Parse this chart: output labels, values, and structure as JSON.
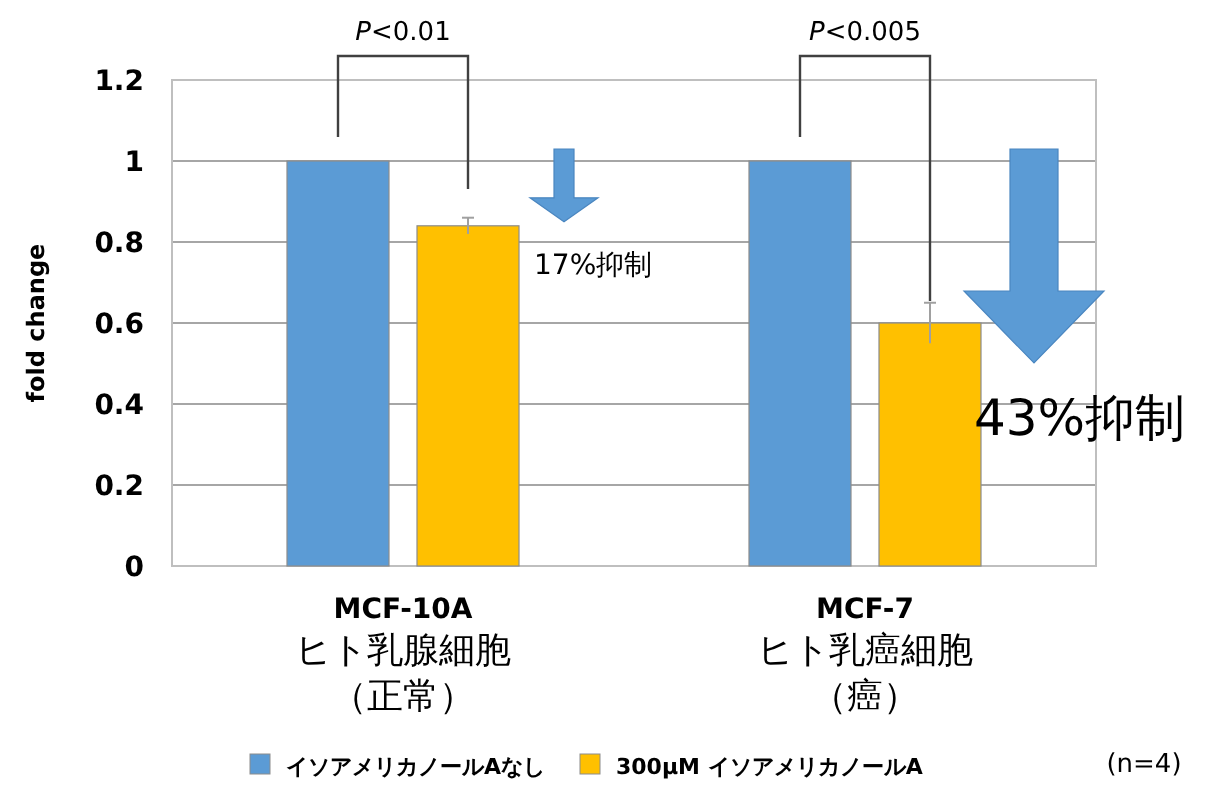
{
  "chart_data": {
    "type": "bar",
    "ylabel": "fold change",
    "categories": [
      "MCF-10A\nヒト乳腺細胞（正常）",
      "MCF-7\nヒト乳癌細胞（癌）"
    ],
    "series": [
      {
        "name": "イソアメリカノールAなし",
        "color": "#5b9bd5",
        "values": [
          1,
          1
        ]
      },
      {
        "name": "300µM イソアメリカノールA",
        "color": "#ffc000",
        "values": [
          0.84,
          0.6
        ],
        "errors": [
          0.02,
          0.05
        ]
      }
    ],
    "ylim": [
      0,
      1.2
    ],
    "yticks": [
      0,
      0.2,
      0.4,
      0.6,
      0.8,
      1,
      1.2
    ],
    "grid": "y",
    "legend": "bottom",
    "annotations": [
      "*P*<0.01",
      "*P*<0.005",
      "17%抑制",
      "43%抑制",
      "(n=4)"
    ]
  }
}
